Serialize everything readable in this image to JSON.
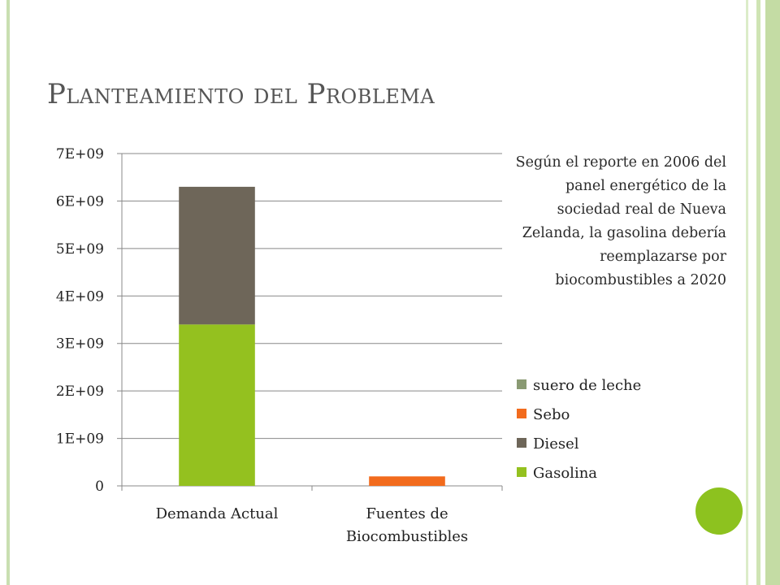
{
  "slide": {
    "title": "Planteamiento del Problema",
    "note": "Según el reporte en 2006   del panel energético de la sociedad real de Nueva Zelanda, la gasolina debería reemplazarse por biocombustibles a 2020"
  },
  "colors": {
    "frame": "#c9dfb1",
    "accent_dot": "#8dc21f",
    "gridline": "#888888"
  },
  "chart_data": {
    "type": "bar",
    "stacked": true,
    "categories": [
      "Demanda Actual",
      "Fuentes de Biocombustibles"
    ],
    "category_lines": [
      [
        "Demanda Actual"
      ],
      [
        "Fuentes de",
        "Biocombustibles"
      ]
    ],
    "series": [
      {
        "name": "Gasolina",
        "color": "#94c11f",
        "values": [
          3400000000,
          0
        ]
      },
      {
        "name": "Diesel",
        "color": "#6e6659",
        "values": [
          2900000000,
          0
        ]
      },
      {
        "name": "Sebo",
        "color": "#f26b1d",
        "values": [
          0,
          200000000
        ]
      },
      {
        "name": "suero de leche",
        "color": "#8a9a73",
        "values": [
          0,
          0
        ]
      }
    ],
    "legend_order": [
      "suero de leche",
      "Sebo",
      "Diesel",
      "Gasolina"
    ],
    "ylim": [
      0,
      7000000000
    ],
    "yticks": [
      0,
      1000000000,
      2000000000,
      3000000000,
      4000000000,
      5000000000,
      6000000000,
      7000000000
    ],
    "ytick_labels": [
      "0",
      "1E+09",
      "2E+09",
      "3E+09",
      "4E+09",
      "5E+09",
      "6E+09",
      "7E+09"
    ],
    "grid": true,
    "legend_position": "right",
    "title": "",
    "xlabel": "",
    "ylabel": ""
  }
}
